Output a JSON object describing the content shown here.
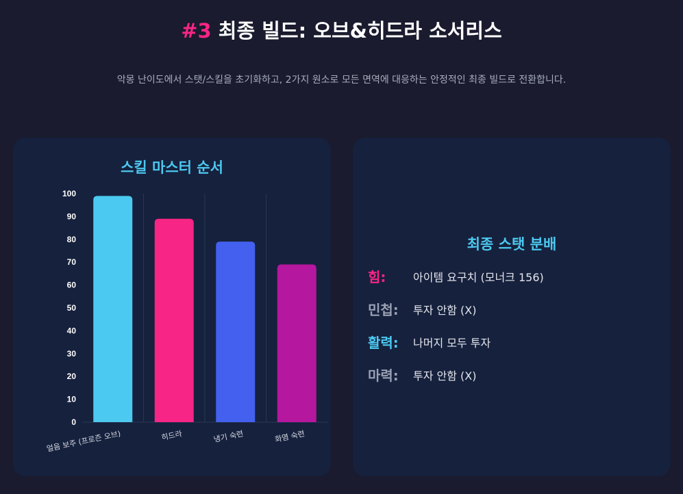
{
  "header": {
    "title_prefix": "#3",
    "title_text": "최종 빌드: 오브&히드라 소서리스",
    "description": "악몽 난이도에서 스탯/스킬을 초기화하고, 2가지 원소로 모든 면역에 대응하는 안정적인 최종 빌드로 전환합니다."
  },
  "chart_data": {
    "type": "bar",
    "title": "스킬 마스터 순서",
    "categories": [
      "얼음 보주 (프로즌 오브)",
      "히드라",
      "냉기 숙련",
      "화염 숙련"
    ],
    "values": [
      99,
      89,
      79,
      69
    ],
    "colors": [
      "#4cc9f0",
      "#f72585",
      "#4361ee",
      "#b5179e"
    ],
    "ylim": [
      0,
      100
    ],
    "yticks": [
      0,
      10,
      20,
      30,
      40,
      50,
      60,
      70,
      80,
      90,
      100
    ],
    "grid": "vertical-category-separators",
    "legend": "none"
  },
  "stats": {
    "title": "최종 스탯 분배",
    "rows": [
      {
        "label": "힘:",
        "value": "아이템 요구치 (모너크 156)",
        "color": "#f72585"
      },
      {
        "label": "민첩:",
        "value": "투자 안함 (X)",
        "color": "#9aa0b3"
      },
      {
        "label": "활력:",
        "value": "나머지 모두 투자",
        "color": "#4cc9f0"
      },
      {
        "label": "마력:",
        "value": "투자 안함 (X)",
        "color": "#9aa0b3"
      }
    ]
  }
}
